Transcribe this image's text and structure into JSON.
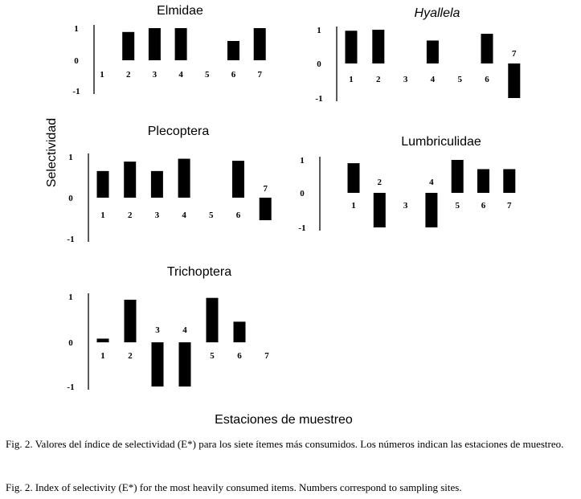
{
  "figure": {
    "ylabel": "Selectividad",
    "xlabel": "Estaciones de muestreo",
    "caption_es": "Fig. 2. Valores del índice de selectividad (E*) para los siete ítemes más consumidos. Los números indican las estaciones de muestreo.",
    "caption_en": "Fig. 2. Index of selectivity (E*) for the most heavily consumed items. Numbers correspond to sampling sites.",
    "bar_color": "#000000"
  },
  "chart_data": [
    {
      "type": "bar",
      "title": "Elmidae",
      "title_italic": false,
      "categories": [
        "1",
        "2",
        "3",
        "4",
        "5",
        "6",
        "7"
      ],
      "values": [
        0,
        0.88,
        1.0,
        1.0,
        0,
        0.6,
        1.0
      ],
      "yticks": [
        "1",
        "0",
        "-1"
      ],
      "ylim": [
        -1,
        1
      ]
    },
    {
      "type": "bar",
      "title": "Hyallela",
      "title_italic": true,
      "categories": [
        "1",
        "2",
        "3",
        "4",
        "5",
        "6",
        "7"
      ],
      "values": [
        0.97,
        1.0,
        0,
        0.68,
        0,
        0.88,
        -1.0
      ],
      "yticks": [
        "1",
        "0",
        "-1"
      ],
      "ylim": [
        -1,
        1
      ]
    },
    {
      "type": "bar",
      "title": "Plecoptera",
      "title_italic": false,
      "categories": [
        "1",
        "2",
        "3",
        "4",
        "5",
        "6",
        "7"
      ],
      "values": [
        0.65,
        0.88,
        0.65,
        0.95,
        0,
        0.9,
        -0.55
      ],
      "yticks": [
        "1",
        "0",
        "-1"
      ],
      "ylim": [
        -1,
        1
      ]
    },
    {
      "type": "bar",
      "title": "Lumbriculidae",
      "title_italic": false,
      "categories": [
        "1",
        "2",
        "3",
        "4",
        "5",
        "6",
        "7"
      ],
      "values": [
        0.9,
        -1.0,
        0,
        -1.0,
        1.0,
        0.72,
        0.72
      ],
      "yticks": [
        "1",
        "0",
        "-1"
      ],
      "ylim": [
        -1,
        1
      ]
    },
    {
      "type": "bar",
      "title": "Trichoptera",
      "title_italic": false,
      "categories": [
        "1",
        "2",
        "3",
        "4",
        "5",
        "6",
        "7"
      ],
      "values": [
        0.08,
        0.93,
        -1.0,
        -1.0,
        0.97,
        0.45,
        0
      ],
      "yticks": [
        "1",
        "0",
        "-1"
      ],
      "ylim": [
        -1,
        1
      ]
    }
  ]
}
